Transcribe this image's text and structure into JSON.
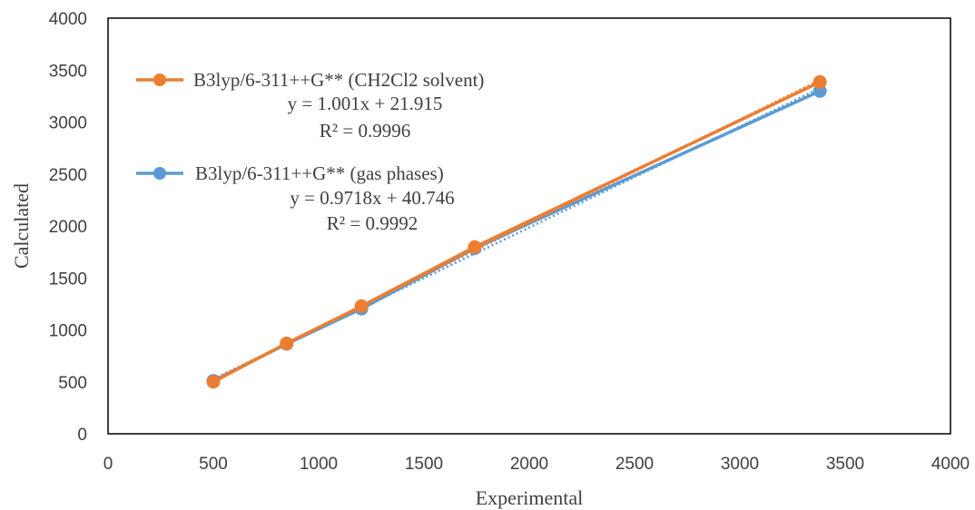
{
  "chart_data": {
    "type": "scatter",
    "xlabel": "Experimental",
    "ylabel": "Calculated",
    "xlim": [
      0,
      4000
    ],
    "ylim": [
      0,
      4000
    ],
    "xticks": [
      0,
      500,
      1000,
      1500,
      2000,
      2500,
      3000,
      3500,
      4000
    ],
    "yticks": [
      0,
      500,
      1000,
      1500,
      2000,
      2500,
      3000,
      3500,
      4000
    ],
    "grid": false,
    "legend_position": "top-left",
    "series": [
      {
        "name": "B3lyp/6-311++G** (CH2Cl2 solvent)",
        "color": "#ED7D31",
        "x": [
          500,
          848,
          1203,
          1741,
          3380
        ],
        "y": [
          500,
          870,
          1228,
          1797,
          3385
        ],
        "trendline": {
          "slope": 1.001,
          "intercept": 21.915
        },
        "equation": "y = 1.001x + 21.915",
        "r2": "R² = 0.9996"
      },
      {
        "name": "B3lyp/6-311++G** (gas phases)",
        "color": "#5B9BD5",
        "x": [
          500,
          848,
          1203,
          1741,
          3380
        ],
        "y": [
          510,
          865,
          1203,
          1785,
          3298
        ],
        "trendline": {
          "slope": 0.9718,
          "intercept": 40.746
        },
        "equation": "y = 0.9718x + 40.746",
        "r2": "R² = 0.9992"
      }
    ]
  }
}
